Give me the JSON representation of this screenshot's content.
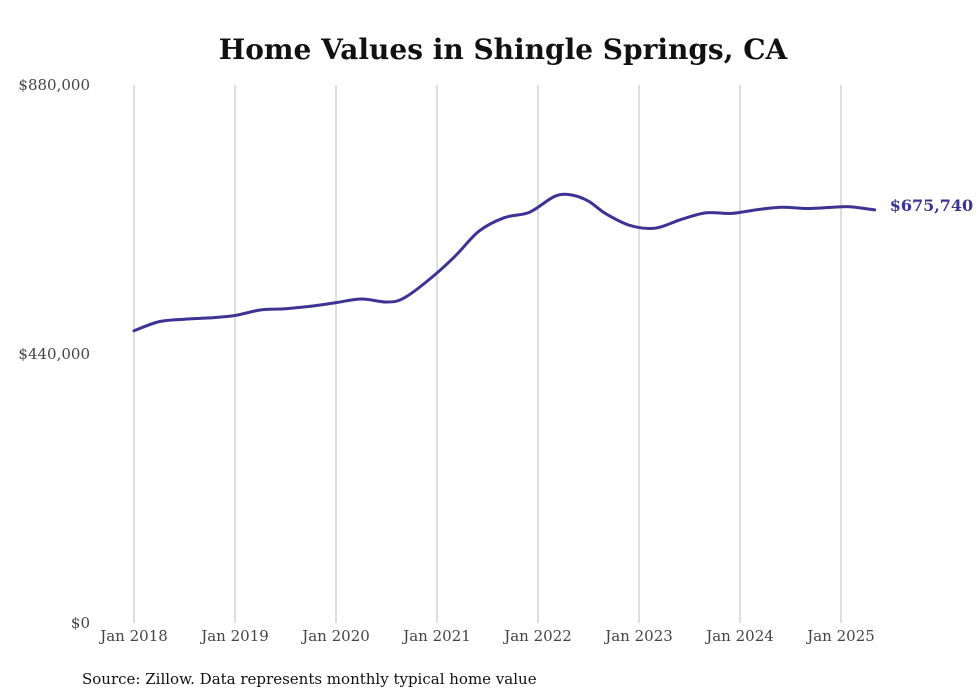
{
  "chart_data": {
    "type": "line",
    "title": "Home Values in Shingle Springs, CA",
    "xlabel": "",
    "ylabel": "",
    "ylim": [
      0,
      880000
    ],
    "y_ticks": [
      {
        "value": 0,
        "label": "$0"
      },
      {
        "value": 440000,
        "label": "$440,000"
      },
      {
        "value": 880000,
        "label": "$880,000"
      }
    ],
    "x_ticks": [
      {
        "value": "2018-01",
        "label": "Jan 2018"
      },
      {
        "value": "2019-01",
        "label": "Jan 2019"
      },
      {
        "value": "2020-01",
        "label": "Jan 2020"
      },
      {
        "value": "2021-01",
        "label": "Jan 2021"
      },
      {
        "value": "2022-01",
        "label": "Jan 2022"
      },
      {
        "value": "2023-01",
        "label": "Jan 2023"
      },
      {
        "value": "2024-01",
        "label": "Jan 2024"
      },
      {
        "value": "2025-01",
        "label": "Jan 2025"
      }
    ],
    "grid": "vertical",
    "series": [
      {
        "color": "#3d3393",
        "x": [
          "2018-01",
          "2018-04",
          "2018-07",
          "2018-10",
          "2019-01",
          "2019-04",
          "2019-07",
          "2019-10",
          "2020-01",
          "2020-04",
          "2020-07",
          "2020-09",
          "2020-12",
          "2021-03",
          "2021-06",
          "2021-09",
          "2021-12",
          "2022-03",
          "2022-05",
          "2022-07",
          "2022-09",
          "2022-12",
          "2023-03",
          "2023-06",
          "2023-09",
          "2023-12",
          "2024-03",
          "2024-06",
          "2024-09",
          "2024-12",
          "2025-02",
          "2025-05"
        ],
        "values": [
          478000,
          493000,
          497000,
          499000,
          503000,
          512000,
          514000,
          518000,
          524000,
          530000,
          525000,
          531000,
          561000,
          598000,
          641000,
          663000,
          672000,
          698000,
          700000,
          690000,
          670000,
          650000,
          646000,
          660000,
          671000,
          670000,
          676000,
          680000,
          678000,
          680000,
          681000,
          675740
        ]
      }
    ],
    "end_label": "$675,740",
    "source": "Source: Zillow. Data represents monthly typical home value"
  }
}
